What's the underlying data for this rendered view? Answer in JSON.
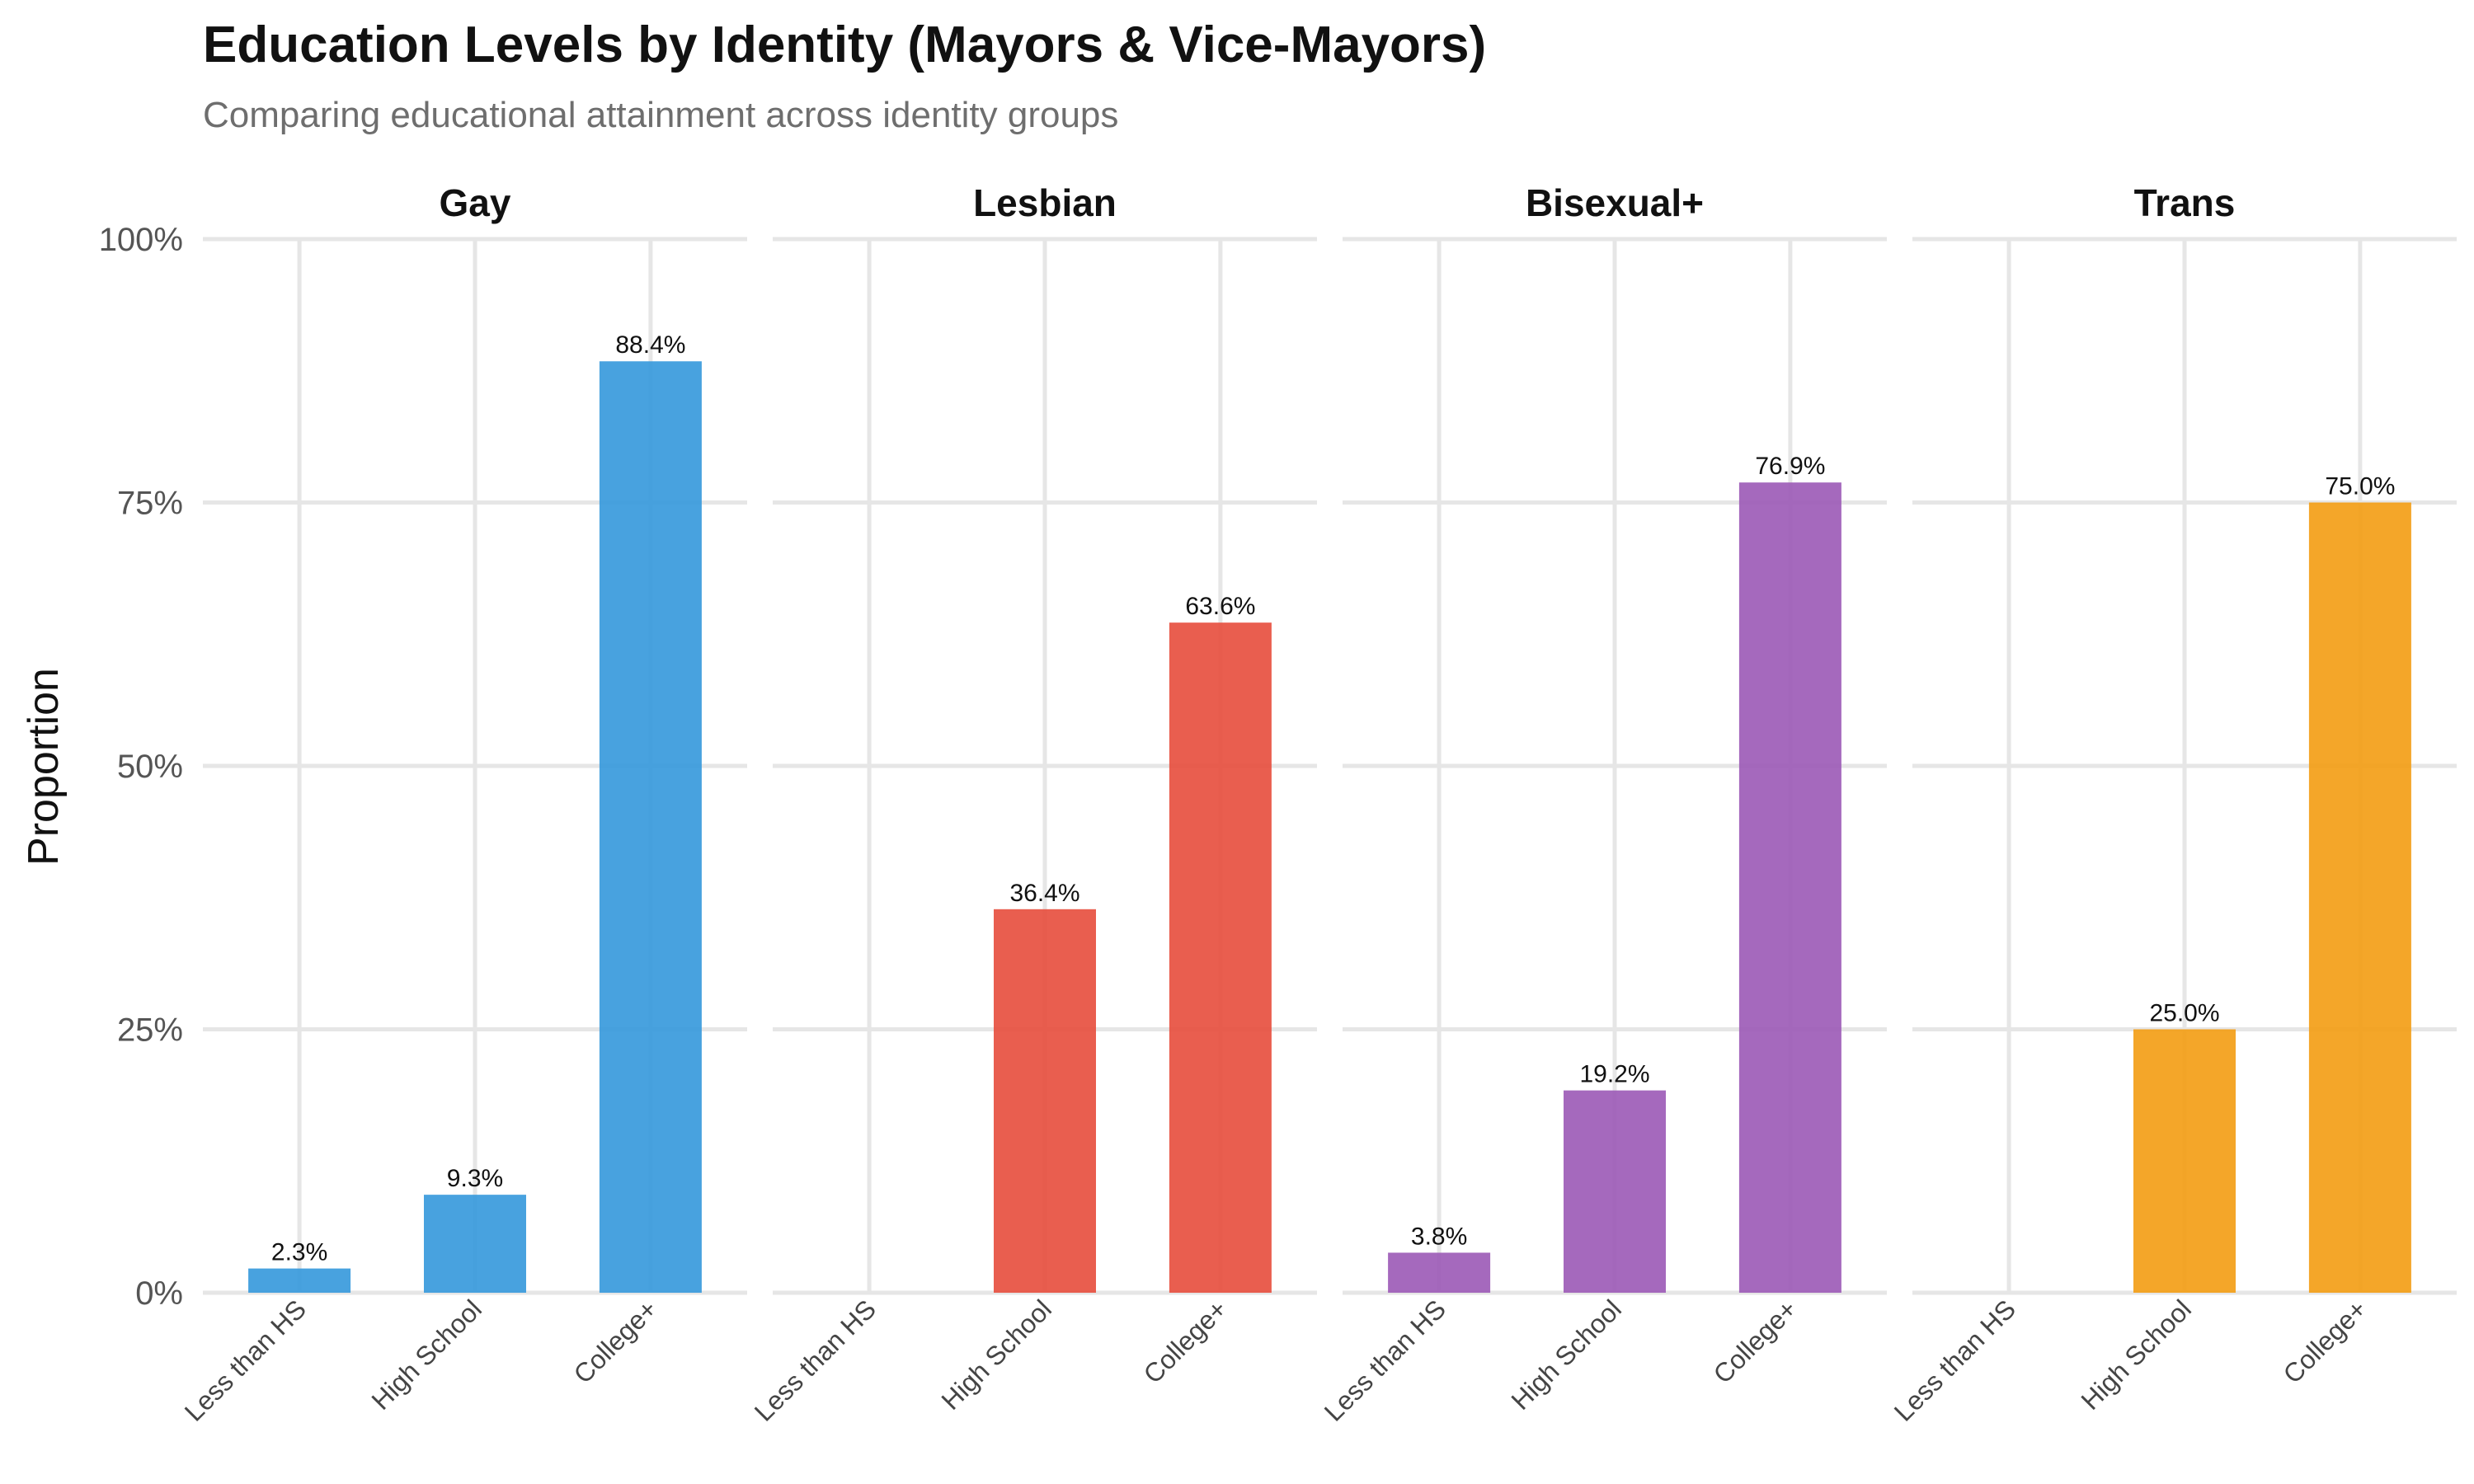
{
  "chart_data": {
    "type": "bar",
    "title": "Education Levels by Identity (Mayors & Vice-Mayors)",
    "subtitle": "Comparing educational attainment across identity groups",
    "xlabel": "",
    "ylabel": "Proportion",
    "ylim": [
      0,
      1
    ],
    "yticks": [
      0,
      0.25,
      0.5,
      0.75,
      1.0
    ],
    "ytick_labels": [
      "0%",
      "25%",
      "50%",
      "75%",
      "100%"
    ],
    "categories": [
      "Less than HS",
      "High School",
      "College+"
    ],
    "grid": true,
    "legend": "none",
    "facets": [
      {
        "name": "Gay",
        "color": "#3498DB",
        "values": [
          0.023,
          0.093,
          0.884
        ],
        "labels": [
          "2.3%",
          "9.3%",
          "88.4%"
        ]
      },
      {
        "name": "Lesbian",
        "color": "#E74C3C",
        "values": [
          null,
          0.364,
          0.636
        ],
        "labels": [
          null,
          "36.4%",
          "63.6%"
        ]
      },
      {
        "name": "Bisexual+",
        "color": "#9B59B6",
        "values": [
          0.038,
          0.192,
          0.769
        ],
        "labels": [
          "3.8%",
          "19.2%",
          "76.9%"
        ]
      },
      {
        "name": "Trans",
        "color": "#F39C12",
        "values": [
          null,
          0.25,
          0.75
        ],
        "labels": [
          null,
          "25.0%",
          "75.0%"
        ]
      }
    ]
  }
}
